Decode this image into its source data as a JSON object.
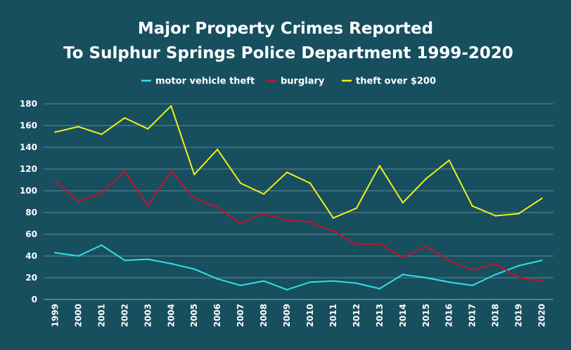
{
  "chart_data": {
    "type": "line",
    "title": "Major Property Crimes Reported",
    "subtitle": "To Sulphur Springs Police Department 1999-2020",
    "xlabel": "",
    "ylabel": "",
    "categories": [
      "1999",
      "2000",
      "2001",
      "2002",
      "2003",
      "2004",
      "2005",
      "2006",
      "2007",
      "2008",
      "2009",
      "2010",
      "2011",
      "2012",
      "2013",
      "2014",
      "2015",
      "2016",
      "2017",
      "2018",
      "2019",
      "2020"
    ],
    "ylim": [
      0,
      180
    ],
    "yticks": [
      0,
      20,
      40,
      60,
      80,
      100,
      120,
      140,
      160,
      180
    ],
    "grid": true,
    "legend_position": "top",
    "series": [
      {
        "name": "motor vehicle theft",
        "color": "#2fe0ea",
        "values": [
          43,
          40,
          50,
          36,
          37,
          33,
          28,
          19,
          13,
          17,
          9,
          16,
          17,
          15,
          10,
          23,
          20,
          16,
          13,
          23,
          31,
          36
        ]
      },
      {
        "name": "burglary",
        "color": "#c8102e",
        "values": [
          109,
          90,
          98,
          118,
          86,
          118,
          93,
          85,
          70,
          79,
          73,
          71,
          63,
          51,
          51,
          39,
          49,
          36,
          27,
          33,
          20,
          17
        ]
      },
      {
        "name": "theft over $200",
        "color": "#eef01c",
        "values": [
          154,
          159,
          152,
          167,
          157,
          178,
          115,
          138,
          107,
          97,
          117,
          107,
          75,
          84,
          123,
          89,
          111,
          128,
          86,
          77,
          79,
          93
        ]
      }
    ]
  }
}
